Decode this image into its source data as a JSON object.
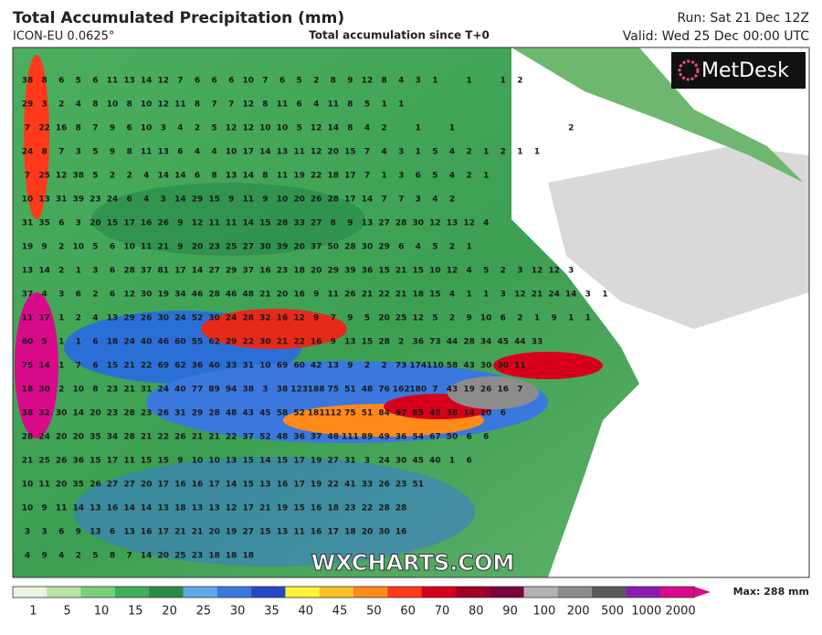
{
  "header": {
    "title": "Total Accumulated Precipitation (mm)",
    "model": "ICON-EU 0.0625°",
    "subtitle": "Total accumulation since T+0",
    "run": "Run: Sat 21 Dec 12Z",
    "valid": "Valid: Wed 25 Dec 00:00 UTC"
  },
  "logo": "MetDesk",
  "watermark": "WXCHARTS.COM",
  "map": {
    "rows": [
      [
        38,
        8,
        6,
        5,
        6,
        11,
        13,
        14,
        12,
        7,
        6,
        6,
        6,
        10,
        7,
        6,
        5,
        2,
        8,
        9,
        12,
        8,
        4,
        3,
        1,
        null,
        1,
        null,
        1,
        2
      ],
      [
        29,
        3,
        2,
        4,
        8,
        10,
        8,
        10,
        12,
        11,
        8,
        7,
        7,
        12,
        8,
        11,
        6,
        4,
        11,
        8,
        5,
        1,
        1
      ],
      [
        7,
        22,
        16,
        8,
        7,
        9,
        6,
        10,
        3,
        4,
        2,
        5,
        12,
        12,
        10,
        10,
        5,
        12,
        14,
        8,
        4,
        2,
        null,
        1,
        null,
        1,
        null,
        null,
        null,
        null,
        null,
        null,
        2
      ],
      [
        24,
        8,
        7,
        3,
        5,
        9,
        8,
        11,
        13,
        6,
        4,
        4,
        10,
        17,
        14,
        13,
        11,
        12,
        20,
        15,
        7,
        4,
        3,
        1,
        5,
        4,
        2,
        1,
        2,
        1,
        1
      ],
      [
        7,
        25,
        12,
        38,
        5,
        2,
        2,
        4,
        14,
        14,
        6,
        8,
        13,
        14,
        8,
        11,
        19,
        22,
        18,
        17,
        7,
        1,
        3,
        6,
        5,
        4,
        2,
        1
      ],
      [
        10,
        13,
        31,
        39,
        23,
        24,
        6,
        4,
        3,
        14,
        29,
        15,
        9,
        11,
        9,
        10,
        20,
        26,
        28,
        17,
        14,
        7,
        7,
        3,
        4,
        2
      ],
      [
        31,
        35,
        6,
        3,
        20,
        15,
        17,
        16,
        26,
        9,
        12,
        11,
        11,
        14,
        15,
        28,
        33,
        27,
        8,
        9,
        13,
        27,
        28,
        30,
        12,
        13,
        12,
        4
      ],
      [
        19,
        9,
        2,
        10,
        5,
        6,
        10,
        11,
        21,
        9,
        20,
        23,
        25,
        27,
        30,
        39,
        20,
        37,
        50,
        28,
        30,
        29,
        6,
        4,
        5,
        2,
        1
      ],
      [
        13,
        14,
        2,
        1,
        3,
        6,
        28,
        37,
        81,
        17,
        14,
        27,
        29,
        37,
        16,
        23,
        18,
        20,
        29,
        39,
        36,
        15,
        21,
        15,
        10,
        12,
        4,
        5,
        2,
        3,
        12,
        12,
        3
      ],
      [
        37,
        4,
        3,
        6,
        2,
        6,
        12,
        30,
        19,
        34,
        46,
        28,
        46,
        48,
        21,
        20,
        16,
        9,
        11,
        26,
        21,
        22,
        21,
        18,
        15,
        4,
        1,
        1,
        3,
        12,
        21,
        24,
        14,
        3,
        1
      ],
      [
        11,
        17,
        1,
        2,
        4,
        13,
        29,
        26,
        30,
        24,
        52,
        30,
        24,
        28,
        32,
        16,
        12,
        9,
        7,
        9,
        5,
        20,
        25,
        12,
        5,
        2,
        9,
        10,
        6,
        2,
        1,
        9,
        1,
        1
      ],
      [
        60,
        5,
        1,
        1,
        6,
        18,
        24,
        40,
        46,
        60,
        55,
        62,
        29,
        22,
        30,
        21,
        22,
        16,
        9,
        13,
        15,
        28,
        2,
        36,
        73,
        44,
        28,
        34,
        45,
        44,
        33
      ],
      [
        75,
        14,
        1,
        7,
        6,
        15,
        21,
        22,
        69,
        62,
        36,
        40,
        33,
        31,
        10,
        69,
        60,
        42,
        13,
        9,
        2,
        2,
        73,
        174,
        110,
        58,
        43,
        30,
        30,
        11
      ],
      [
        18,
        30,
        2,
        10,
        8,
        23,
        21,
        31,
        24,
        40,
        77,
        89,
        94,
        38,
        3,
        38,
        123,
        188,
        75,
        51,
        48,
        76,
        162,
        180,
        7,
        43,
        19,
        26,
        16,
        7
      ],
      [
        38,
        32,
        30,
        14,
        20,
        23,
        28,
        23,
        26,
        31,
        29,
        28,
        48,
        43,
        45,
        58,
        52,
        181,
        112,
        75,
        51,
        84,
        97,
        85,
        45,
        38,
        14,
        10,
        6
      ],
      [
        28,
        24,
        20,
        20,
        35,
        34,
        28,
        21,
        22,
        26,
        21,
        21,
        22,
        37,
        52,
        48,
        36,
        37,
        48,
        111,
        89,
        49,
        36,
        54,
        67,
        50,
        6,
        6
      ],
      [
        21,
        25,
        26,
        36,
        15,
        17,
        11,
        15,
        15,
        9,
        10,
        10,
        13,
        15,
        14,
        15,
        17,
        19,
        27,
        31,
        3,
        24,
        30,
        45,
        40,
        1,
        6
      ],
      [
        10,
        11,
        20,
        35,
        26,
        27,
        27,
        20,
        17,
        16,
        16,
        17,
        14,
        15,
        13,
        16,
        17,
        19,
        22,
        41,
        33,
        26,
        23,
        51
      ],
      [
        10,
        9,
        11,
        14,
        13,
        16,
        14,
        14,
        13,
        18,
        13,
        13,
        12,
        17,
        21,
        19,
        15,
        16,
        18,
        23,
        22,
        28,
        28
      ],
      [
        3,
        3,
        6,
        9,
        13,
        6,
        13,
        16,
        17,
        21,
        21,
        20,
        19,
        27,
        15,
        13,
        11,
        16,
        17,
        18,
        20,
        30,
        16
      ],
      [
        4,
        9,
        4,
        2,
        5,
        8,
        7,
        14,
        20,
        25,
        23,
        18,
        18,
        18
      ]
    ]
  },
  "colorbar": {
    "labels": [
      1,
      5,
      10,
      15,
      20,
      25,
      30,
      35,
      40,
      45,
      50,
      60,
      70,
      80,
      90,
      100,
      200,
      500,
      1000,
      2000
    ],
    "colors": [
      "#e8f5e0",
      "#b9e3a8",
      "#7ccf7a",
      "#3fae5a",
      "#2a8b4a",
      "#5fa9e8",
      "#3a78dd",
      "#2747c8",
      "#fff23a",
      "#ffc224",
      "#ff8a1a",
      "#ff3a1a",
      "#d6001c",
      "#a10024",
      "#7a0040",
      "#b2b2b2",
      "#8c8c8c",
      "#5a5a5a",
      "#8a1cb0",
      "#d90a8a"
    ],
    "max": "Max: 288 mm"
  }
}
